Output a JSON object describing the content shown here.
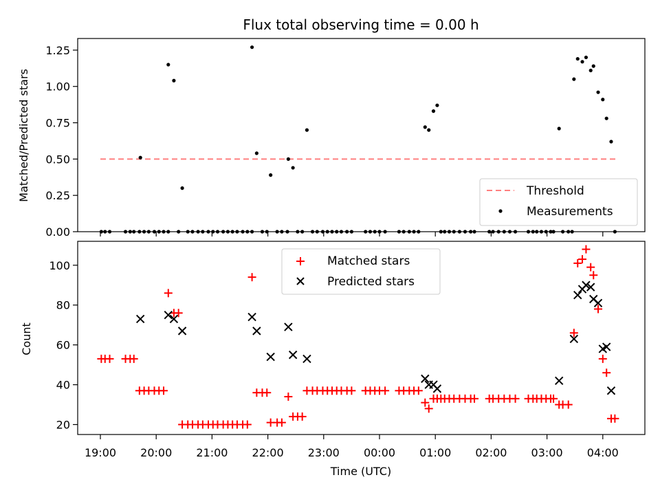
{
  "chart_data": [
    {
      "type": "scatter",
      "title": "Flux total observing time = 0.00 h",
      "xlabel": "",
      "ylabel": "Matched/Predicted stars",
      "ylim": [
        0,
        1.33
      ],
      "yticks": [
        "0.00",
        "0.25",
        "0.50",
        "0.75",
        "1.00",
        "1.25"
      ],
      "xticks": [
        "19:00",
        "20:00",
        "21:00",
        "22:00",
        "23:00",
        "00:00",
        "01:00",
        "02:00",
        "03:00",
        "04:00"
      ],
      "legend": {
        "position": "lower-right",
        "entries": [
          "Threshold",
          "Measurements"
        ]
      },
      "threshold": {
        "name": "Threshold",
        "value": 0.5,
        "x_start": "19:00",
        "x_end": "04:17",
        "color": "#ff7f7f",
        "style": "dashed"
      },
      "series": [
        {
          "name": "Measurements",
          "color": "#000000",
          "points": [
            [
              "19:01",
              0
            ],
            [
              "19:05",
              0
            ],
            [
              "19:10",
              0
            ],
            [
              "19:27",
              0
            ],
            [
              "19:32",
              0
            ],
            [
              "19:36",
              0
            ],
            [
              "19:42",
              0
            ],
            [
              "19:47",
              0
            ],
            [
              "19:52",
              0
            ],
            [
              "19:58",
              0
            ],
            [
              "20:03",
              0
            ],
            [
              "20:08",
              0
            ],
            [
              "20:13",
              0
            ],
            [
              "19:43",
              0.51
            ],
            [
              "20:13",
              1.15
            ],
            [
              "20:19",
              1.04
            ],
            [
              "20:24",
              0
            ],
            [
              "20:28",
              0.3
            ],
            [
              "20:34",
              0
            ],
            [
              "20:39",
              0
            ],
            [
              "20:45",
              0
            ],
            [
              "20:50",
              0
            ],
            [
              "20:56",
              0
            ],
            [
              "21:01",
              0
            ],
            [
              "21:06",
              0
            ],
            [
              "21:12",
              0
            ],
            [
              "21:17",
              0
            ],
            [
              "21:22",
              0
            ],
            [
              "21:27",
              0
            ],
            [
              "21:33",
              0
            ],
            [
              "21:38",
              0
            ],
            [
              "21:43",
              0
            ],
            [
              "21:43",
              1.27
            ],
            [
              "21:48",
              0.54
            ],
            [
              "21:54",
              0
            ],
            [
              "21:59",
              0
            ],
            [
              "22:03",
              0.39
            ],
            [
              "22:10",
              0
            ],
            [
              "22:15",
              0
            ],
            [
              "22:21",
              0
            ],
            [
              "22:22",
              0.5
            ],
            [
              "22:27",
              0.44
            ],
            [
              "22:32",
              0
            ],
            [
              "22:37",
              0
            ],
            [
              "22:42",
              0.7
            ],
            [
              "22:48",
              0
            ],
            [
              "22:53",
              0
            ],
            [
              "22:59",
              0
            ],
            [
              "23:04",
              0
            ],
            [
              "23:09",
              0
            ],
            [
              "23:14",
              0
            ],
            [
              "23:19",
              0
            ],
            [
              "23:25",
              0
            ],
            [
              "23:30",
              0
            ],
            [
              "23:45",
              0
            ],
            [
              "23:50",
              0
            ],
            [
              "23:55",
              0
            ],
            [
              "00:00",
              0
            ],
            [
              "00:06",
              0
            ],
            [
              "00:21",
              0
            ],
            [
              "00:26",
              0
            ],
            [
              "00:32",
              0
            ],
            [
              "00:37",
              0
            ],
            [
              "00:42",
              0
            ],
            [
              "00:49",
              0.72
            ],
            [
              "00:53",
              0.7
            ],
            [
              "00:58",
              0.83
            ],
            [
              "01:02",
              0.87
            ],
            [
              "01:06",
              0
            ],
            [
              "01:10",
              0
            ],
            [
              "01:15",
              0
            ],
            [
              "01:20",
              0
            ],
            [
              "01:26",
              0
            ],
            [
              "01:32",
              0
            ],
            [
              "01:38",
              0
            ],
            [
              "01:42",
              0
            ],
            [
              "01:58",
              0
            ],
            [
              "02:02",
              0
            ],
            [
              "02:08",
              0
            ],
            [
              "02:14",
              0
            ],
            [
              "02:20",
              0
            ],
            [
              "02:26",
              0
            ],
            [
              "02:40",
              0
            ],
            [
              "02:45",
              0
            ],
            [
              "02:49",
              0
            ],
            [
              "02:54",
              0
            ],
            [
              "02:59",
              0
            ],
            [
              "03:04",
              0
            ],
            [
              "03:07",
              0
            ],
            [
              "03:13",
              0.71
            ],
            [
              "03:17",
              0
            ],
            [
              "03:23",
              0
            ],
            [
              "03:27",
              0
            ],
            [
              "03:29",
              1.05
            ],
            [
              "03:33",
              1.19
            ],
            [
              "03:38",
              1.17
            ],
            [
              "03:42",
              1.2
            ],
            [
              "03:47",
              1.11
            ],
            [
              "03:50",
              1.14
            ],
            [
              "03:55",
              0.96
            ],
            [
              "04:00",
              0.91
            ],
            [
              "04:04",
              0.78
            ],
            [
              "04:09",
              0.62
            ],
            [
              "04:13",
              0
            ]
          ]
        }
      ]
    },
    {
      "type": "scatter",
      "title": "",
      "xlabel": "Time (UTC)",
      "ylabel": "Count",
      "ylim": [
        15,
        112
      ],
      "yticks": [
        "20",
        "40",
        "60",
        "80",
        "100"
      ],
      "xticks": [
        "19:00",
        "20:00",
        "21:00",
        "22:00",
        "23:00",
        "00:00",
        "01:00",
        "02:00",
        "03:00",
        "04:00"
      ],
      "legend": {
        "position": "upper-center",
        "entries": [
          "Matched stars",
          "Predicted stars"
        ]
      },
      "series": [
        {
          "name": "Matched stars",
          "marker": "+",
          "color": "#ff0000",
          "points": [
            [
              "19:01",
              53
            ],
            [
              "19:05",
              53
            ],
            [
              "19:10",
              53
            ],
            [
              "19:27",
              53
            ],
            [
              "19:32",
              53
            ],
            [
              "19:36",
              53
            ],
            [
              "19:42",
              37
            ],
            [
              "19:47",
              37
            ],
            [
              "19:52",
              37
            ],
            [
              "19:58",
              37
            ],
            [
              "20:03",
              37
            ],
            [
              "20:08",
              37
            ],
            [
              "20:13",
              86
            ],
            [
              "20:19",
              76
            ],
            [
              "20:24",
              76
            ],
            [
              "20:28",
              20
            ],
            [
              "20:34",
              20
            ],
            [
              "20:39",
              20
            ],
            [
              "20:45",
              20
            ],
            [
              "20:50",
              20
            ],
            [
              "20:56",
              20
            ],
            [
              "21:01",
              20
            ],
            [
              "21:06",
              20
            ],
            [
              "21:12",
              20
            ],
            [
              "21:17",
              20
            ],
            [
              "21:22",
              20
            ],
            [
              "21:27",
              20
            ],
            [
              "21:33",
              20
            ],
            [
              "21:38",
              20
            ],
            [
              "21:43",
              94
            ],
            [
              "21:48",
              36
            ],
            [
              "21:54",
              36
            ],
            [
              "21:59",
              36
            ],
            [
              "22:03",
              21
            ],
            [
              "22:10",
              21
            ],
            [
              "22:15",
              21
            ],
            [
              "22:22",
              34
            ],
            [
              "22:27",
              24
            ],
            [
              "22:32",
              24
            ],
            [
              "22:37",
              24
            ],
            [
              "22:42",
              37
            ],
            [
              "22:48",
              37
            ],
            [
              "22:53",
              37
            ],
            [
              "22:59",
              37
            ],
            [
              "23:04",
              37
            ],
            [
              "23:09",
              37
            ],
            [
              "23:14",
              37
            ],
            [
              "23:19",
              37
            ],
            [
              "23:25",
              37
            ],
            [
              "23:30",
              37
            ],
            [
              "23:45",
              37
            ],
            [
              "23:50",
              37
            ],
            [
              "23:55",
              37
            ],
            [
              "00:00",
              37
            ],
            [
              "00:06",
              37
            ],
            [
              "00:21",
              37
            ],
            [
              "00:26",
              37
            ],
            [
              "00:32",
              37
            ],
            [
              "00:37",
              37
            ],
            [
              "00:42",
              37
            ],
            [
              "00:49",
              31
            ],
            [
              "00:53",
              28
            ],
            [
              "00:58",
              33
            ],
            [
              "01:02",
              33
            ],
            [
              "01:06",
              33
            ],
            [
              "01:10",
              33
            ],
            [
              "01:15",
              33
            ],
            [
              "01:20",
              33
            ],
            [
              "01:26",
              33
            ],
            [
              "01:32",
              33
            ],
            [
              "01:38",
              33
            ],
            [
              "01:42",
              33
            ],
            [
              "01:58",
              33
            ],
            [
              "02:02",
              33
            ],
            [
              "02:08",
              33
            ],
            [
              "02:14",
              33
            ],
            [
              "02:20",
              33
            ],
            [
              "02:26",
              33
            ],
            [
              "02:40",
              33
            ],
            [
              "02:45",
              33
            ],
            [
              "02:49",
              33
            ],
            [
              "02:54",
              33
            ],
            [
              "02:59",
              33
            ],
            [
              "03:04",
              33
            ],
            [
              "03:07",
              33
            ],
            [
              "03:13",
              30
            ],
            [
              "03:17",
              30
            ],
            [
              "03:23",
              30
            ],
            [
              "03:29",
              66
            ],
            [
              "03:33",
              101
            ],
            [
              "03:38",
              103
            ],
            [
              "03:42",
              108
            ],
            [
              "03:47",
              99
            ],
            [
              "03:50",
              95
            ],
            [
              "03:55",
              78
            ],
            [
              "04:00",
              53
            ],
            [
              "04:04",
              46
            ],
            [
              "04:09",
              23
            ],
            [
              "04:13",
              23
            ]
          ]
        },
        {
          "name": "Predicted stars",
          "marker": "x",
          "color": "#000000",
          "points": [
            [
              "19:43",
              73
            ],
            [
              "20:13",
              75
            ],
            [
              "20:19",
              73
            ],
            [
              "20:28",
              67
            ],
            [
              "21:43",
              74
            ],
            [
              "21:48",
              67
            ],
            [
              "22:03",
              54
            ],
            [
              "22:22",
              69
            ],
            [
              "22:27",
              55
            ],
            [
              "22:42",
              53
            ],
            [
              "00:49",
              43
            ],
            [
              "00:53",
              40
            ],
            [
              "00:58",
              40
            ],
            [
              "01:02",
              38
            ],
            [
              "03:13",
              42
            ],
            [
              "03:29",
              63
            ],
            [
              "03:33",
              85
            ],
            [
              "03:38",
              88
            ],
            [
              "03:42",
              90
            ],
            [
              "03:47",
              89
            ],
            [
              "03:50",
              83
            ],
            [
              "03:55",
              81
            ],
            [
              "04:00",
              58
            ],
            [
              "04:04",
              59
            ],
            [
              "04:09",
              37
            ]
          ]
        }
      ]
    }
  ]
}
